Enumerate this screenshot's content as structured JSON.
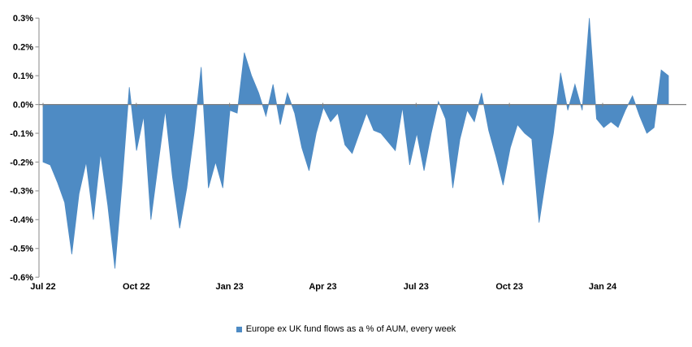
{
  "chart_data": {
    "type": "area",
    "title": "",
    "legend": "Europe ex UK fund flows as a % of AUM, every week",
    "series": [
      {
        "name": "Europe ex UK fund flows as a % of AUM, every week",
        "unit": "% of AUM",
        "frequency": "weekly",
        "values": [
          -0.2,
          -0.21,
          -0.27,
          -0.34,
          -0.52,
          -0.31,
          -0.2,
          -0.4,
          -0.17,
          -0.35,
          -0.57,
          -0.27,
          0.06,
          -0.16,
          -0.04,
          -0.4,
          -0.21,
          -0.02,
          -0.25,
          -0.43,
          -0.29,
          -0.1,
          0.13,
          -0.29,
          -0.2,
          -0.29,
          -0.02,
          -0.03,
          0.18,
          0.1,
          0.04,
          -0.04,
          0.07,
          -0.07,
          0.04,
          -0.03,
          -0.15,
          -0.23,
          -0.1,
          -0.01,
          -0.06,
          -0.03,
          -0.14,
          -0.17,
          -0.1,
          -0.03,
          -0.09,
          -0.1,
          -0.13,
          -0.16,
          -0.01,
          -0.21,
          -0.1,
          -0.23,
          -0.1,
          0.01,
          -0.05,
          -0.29,
          -0.12,
          -0.02,
          -0.06,
          0.04,
          -0.09,
          -0.18,
          -0.28,
          -0.15,
          -0.07,
          -0.1,
          -0.12,
          -0.41,
          -0.25,
          -0.1,
          0.11,
          -0.02,
          0.07,
          -0.02,
          0.3,
          -0.05,
          -0.08,
          -0.06,
          -0.08,
          -0.02,
          0.03,
          -0.04,
          -0.1,
          -0.08,
          0.12,
          0.1
        ]
      }
    ],
    "x_tick_labels": [
      "Jul 22",
      "Oct 22",
      "Jan 23",
      "Apr 23",
      "Jul 23",
      "Oct 23",
      "Jan 24"
    ],
    "y_tick_labels": [
      "0.3%",
      "0.2%",
      "0.1%",
      "0.0%",
      "-0.1%",
      "-0.2%",
      "-0.3%",
      "-0.4%",
      "-0.5%",
      "-0.6%"
    ],
    "ylim": [
      -0.6,
      0.3
    ],
    "y_tick_step": 0.1,
    "grid": "off",
    "legend_position": "bottom-center",
    "colors": {
      "area_fill": "#4E8BC4",
      "zero_line": "#808080",
      "axis_line": "#9B9B9B",
      "text": "#000000"
    }
  }
}
